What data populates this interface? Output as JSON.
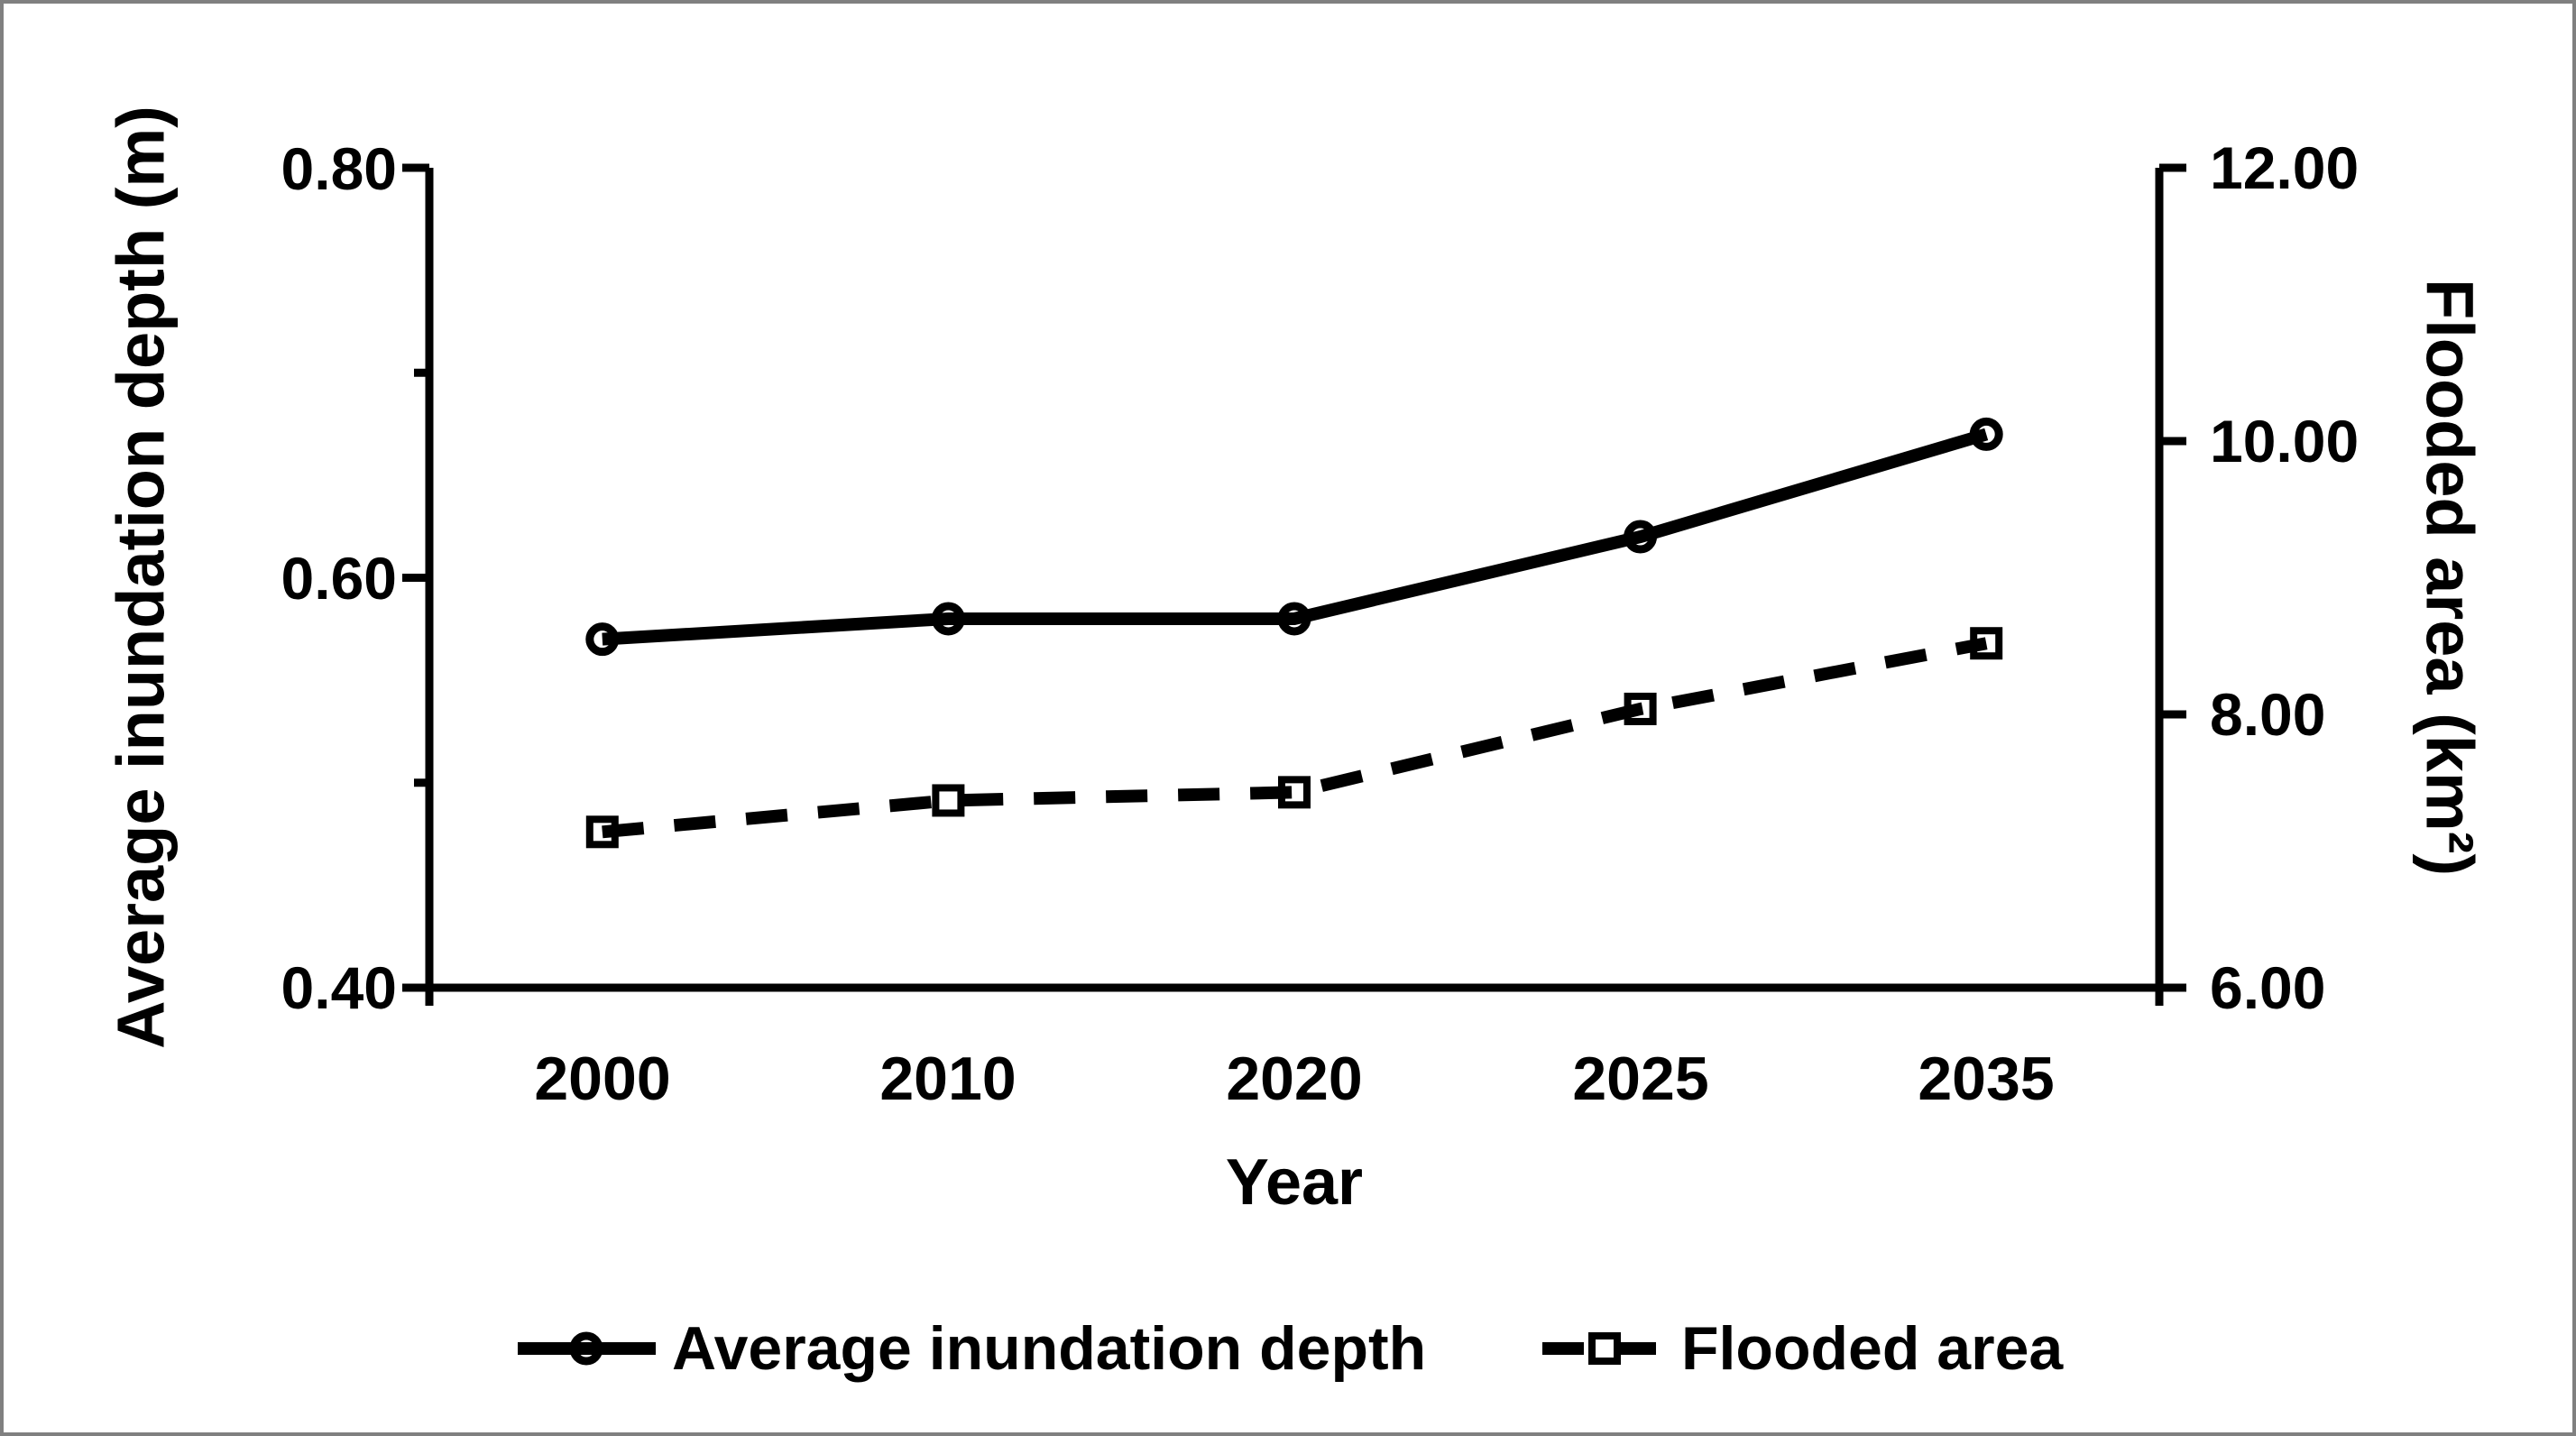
{
  "figure": {
    "background": "#ffffff",
    "frame_color": "#808080",
    "ink_color": "#000000"
  },
  "chart_data": {
    "type": "line",
    "categories": [
      "2000",
      "2010",
      "2020",
      "2025",
      "2035"
    ],
    "series": [
      {
        "name": "Average inundation depth",
        "axis": "left",
        "line_style": "solid",
        "marker": "open-circle",
        "values": [
          0.57,
          0.58,
          0.58,
          0.62,
          0.67
        ]
      },
      {
        "name": "Flooded area",
        "axis": "right",
        "line_style": "dashed",
        "marker": "open-square",
        "values": [
          7.14,
          7.37,
          7.43,
          8.04,
          8.52
        ]
      }
    ],
    "left_axis": {
      "label": "Average inundation depth (m)",
      "ticks": [
        "0.80",
        "0.60",
        "0.40"
      ],
      "tick_values": [
        0.8,
        0.6,
        0.4
      ],
      "range": [
        0.4,
        0.8
      ],
      "minor_unit": 0.1
    },
    "right_axis": {
      "label": "Flooded area (km²)",
      "ticks": [
        "12.00",
        "10.00",
        "8.00",
        "6.00"
      ],
      "tick_values": [
        12,
        10,
        8,
        6
      ],
      "range": [
        6,
        12
      ]
    },
    "x_axis": {
      "label": "Year"
    },
    "legend": [
      {
        "label": "Average inundation depth"
      },
      {
        "label": "Flooded area"
      }
    ],
    "grid": false,
    "legend_position": "bottom"
  }
}
